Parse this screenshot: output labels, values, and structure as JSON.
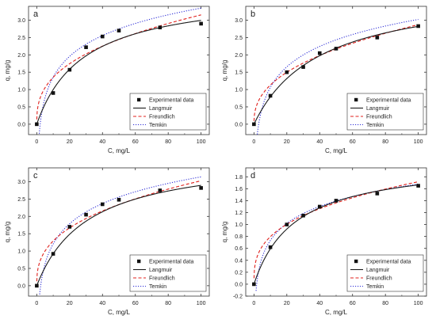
{
  "chart_data": [
    {
      "panel_label": "a",
      "type": "scatter",
      "xlabel": "C, mg/L",
      "ylabel": "q, mg/g",
      "xlim": [
        -5,
        105
      ],
      "ylim": [
        -0.3,
        3.4
      ],
      "xticks": [
        0,
        20,
        40,
        60,
        80,
        100
      ],
      "yticks": [
        0.0,
        0.5,
        1.0,
        1.5,
        2.0,
        2.5,
        3.0
      ],
      "ytick_decimals": 1,
      "legend_position": "bottom-right",
      "legend": [
        "Experimental data",
        "Langmuir",
        "Freundlich",
        "Temkin"
      ],
      "experimental": {
        "x": [
          0,
          10,
          20,
          30,
          40,
          50,
          75,
          100
        ],
        "y": [
          0.0,
          0.9,
          1.57,
          2.22,
          2.53,
          2.7,
          2.79,
          2.9
        ]
      },
      "fits": {
        "langmuir": {
          "qmax": 3.85,
          "KL": 0.035
        },
        "freundlich": {
          "KF": 0.58,
          "n": 2.72
        },
        "temkin": {
          "A": 0.48,
          "B": 0.865
        }
      }
    },
    {
      "panel_label": "b",
      "type": "scatter",
      "xlabel": "C, mg/L",
      "ylabel": "q, mg/g",
      "xlim": [
        -5,
        105
      ],
      "ylim": [
        -0.3,
        3.4
      ],
      "xticks": [
        0,
        20,
        40,
        60,
        80,
        100
      ],
      "yticks": [
        0.0,
        0.5,
        1.0,
        1.5,
        2.0,
        2.5,
        3.0
      ],
      "ytick_decimals": 1,
      "legend_position": "bottom-right",
      "legend": [
        "Experimental data",
        "Langmuir",
        "Freundlich",
        "Temkin"
      ],
      "experimental": {
        "x": [
          0,
          10,
          20,
          30,
          40,
          50,
          75,
          100
        ],
        "y": [
          0.0,
          0.82,
          1.5,
          1.65,
          2.05,
          2.18,
          2.5,
          2.83
        ]
      },
      "fits": {
        "langmuir": {
          "qmax": 3.95,
          "KL": 0.025
        },
        "freundlich": {
          "KF": 0.445,
          "n": 2.47
        },
        "temkin": {
          "A": 0.35,
          "B": 0.85
        }
      }
    },
    {
      "panel_label": "c",
      "type": "scatter",
      "xlabel": "C, mg/L",
      "ylabel": "q, mg/g",
      "xlim": [
        -5,
        105
      ],
      "ylim": [
        -0.3,
        3.4
      ],
      "xticks": [
        0,
        20,
        40,
        60,
        80,
        100
      ],
      "yticks": [
        0.0,
        0.5,
        1.0,
        1.5,
        2.0,
        2.5,
        3.0
      ],
      "ytick_decimals": 1,
      "legend_position": "bottom-right",
      "legend": [
        "Experimental data",
        "Langmuir",
        "Freundlich",
        "Temkin"
      ],
      "experimental": {
        "x": [
          0,
          10,
          20,
          30,
          40,
          50,
          75,
          100
        ],
        "y": [
          0.0,
          0.92,
          1.7,
          2.05,
          2.35,
          2.48,
          2.75,
          2.82
        ]
      },
      "fits": {
        "langmuir": {
          "qmax": 3.8,
          "KL": 0.032
        },
        "freundlich": {
          "KF": 0.55,
          "n": 2.7
        },
        "temkin": {
          "A": 0.42,
          "B": 0.84
        }
      }
    },
    {
      "panel_label": "d",
      "type": "scatter",
      "xlabel": "C, mg/L",
      "ylabel": "q, mg/g",
      "xlim": [
        -5,
        105
      ],
      "ylim": [
        -0.2,
        1.95
      ],
      "xticks": [
        0,
        20,
        40,
        60,
        80,
        100
      ],
      "yticks": [
        -0.2,
        0.0,
        0.2,
        0.4,
        0.6,
        0.8,
        1.0,
        1.2,
        1.4,
        1.6,
        1.8
      ],
      "ytick_decimals": 1,
      "legend_position": "bottom-right",
      "legend": [
        "Experimental data",
        "Langmuir",
        "Freundlich",
        "Temkin"
      ],
      "experimental": {
        "x": [
          0,
          10,
          20,
          30,
          40,
          50,
          75,
          100
        ],
        "y": [
          0.0,
          0.62,
          1.0,
          1.15,
          1.3,
          1.4,
          1.52,
          1.65
        ]
      },
      "fits": {
        "langmuir": {
          "qmax": 2.08,
          "KL": 0.04
        },
        "freundlich": {
          "KF": 0.37,
          "n": 3.0
        },
        "temkin": {
          "A": 0.6,
          "B": 0.41
        }
      }
    }
  ],
  "colors": {
    "langmuir": "#1a1a1a",
    "freundlich": "#e0211d",
    "temkin": "#2f2fd6",
    "marker": "#111111",
    "axis": "#333333"
  }
}
